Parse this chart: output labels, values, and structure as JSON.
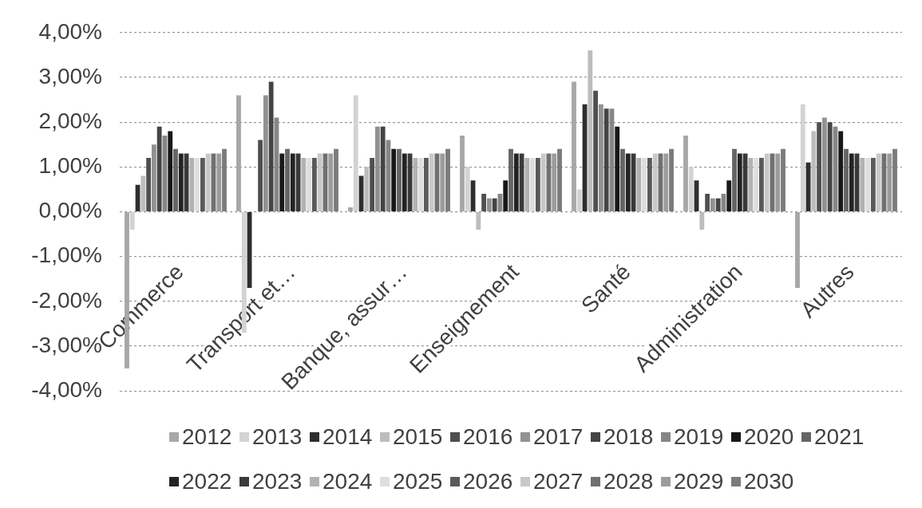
{
  "chart_data": {
    "type": "bar",
    "categories": [
      "Commerce",
      "Transport et…",
      "Banque, assur…",
      "Enseignement",
      "Santé",
      "Administration",
      "Autres"
    ],
    "series": [
      {
        "name": "2012",
        "color": "#a7a7a7",
        "values": [
          -3.5,
          2.6,
          0.1,
          1.7,
          2.9,
          1.7,
          -1.7
        ]
      },
      {
        "name": "2013",
        "color": "#d3d3d3",
        "values": [
          -0.4,
          -2.7,
          2.6,
          1.0,
          0.5,
          1.0,
          2.4
        ]
      },
      {
        "name": "2014",
        "color": "#2e2e2e",
        "values": [
          0.6,
          -1.7,
          0.8,
          0.7,
          2.4,
          0.7,
          1.1
        ]
      },
      {
        "name": "2015",
        "color": "#bdbdbd",
        "values": [
          0.8,
          0,
          1.0,
          -0.4,
          3.6,
          -0.4,
          1.8
        ]
      },
      {
        "name": "2016",
        "color": "#4f4f4f",
        "values": [
          1.2,
          1.6,
          1.2,
          0.4,
          2.7,
          0.4,
          2.0
        ]
      },
      {
        "name": "2017",
        "color": "#919191",
        "values": [
          1.5,
          2.6,
          1.9,
          0.3,
          2.4,
          0.3,
          2.1
        ]
      },
      {
        "name": "2018",
        "color": "#444444",
        "values": [
          1.9,
          2.9,
          1.9,
          0.3,
          2.3,
          0.3,
          2.0
        ]
      },
      {
        "name": "2019",
        "color": "#868686",
        "values": [
          1.7,
          2.1,
          1.6,
          0.4,
          2.3,
          0.4,
          1.9
        ]
      },
      {
        "name": "2020",
        "color": "#181818",
        "values": [
          1.8,
          1.3,
          1.4,
          0.7,
          1.9,
          0.7,
          1.8
        ]
      },
      {
        "name": "2021",
        "color": "#656565",
        "values": [
          1.4,
          1.4,
          1.4,
          1.4,
          1.4,
          1.4,
          1.4
        ]
      },
      {
        "name": "2022",
        "color": "#232323",
        "values": [
          1.3,
          1.3,
          1.3,
          1.3,
          1.3,
          1.3,
          1.3
        ]
      },
      {
        "name": "2023",
        "color": "#393939",
        "values": [
          1.3,
          1.3,
          1.3,
          1.3,
          1.3,
          1.3,
          1.3
        ]
      },
      {
        "name": "2024",
        "color": "#b2b2b2",
        "values": [
          1.2,
          1.2,
          1.2,
          1.2,
          1.2,
          1.2,
          1.2
        ]
      },
      {
        "name": "2025",
        "color": "#dedede",
        "values": [
          1.2,
          1.2,
          1.2,
          1.2,
          1.2,
          1.2,
          1.2
        ]
      },
      {
        "name": "2026",
        "color": "#5a5a5a",
        "values": [
          1.2,
          1.2,
          1.2,
          1.2,
          1.2,
          1.2,
          1.2
        ]
      },
      {
        "name": "2027",
        "color": "#c8c8c8",
        "values": [
          1.3,
          1.3,
          1.3,
          1.3,
          1.3,
          1.3,
          1.3
        ]
      },
      {
        "name": "2028",
        "color": "#707070",
        "values": [
          1.3,
          1.3,
          1.3,
          1.3,
          1.3,
          1.3,
          1.3
        ]
      },
      {
        "name": "2029",
        "color": "#9c9c9c",
        "values": [
          1.3,
          1.3,
          1.3,
          1.3,
          1.3,
          1.3,
          1.3
        ]
      },
      {
        "name": "2030",
        "color": "#7b7b7b",
        "values": [
          1.4,
          1.4,
          1.4,
          1.4,
          1.4,
          1.4,
          1.4
        ]
      }
    ],
    "ylim": [
      -4,
      4
    ],
    "yticks": [
      {
        "value": -4,
        "label": "-4,00%"
      },
      {
        "value": -3,
        "label": "-3,00%"
      },
      {
        "value": -2,
        "label": "-2,00%"
      },
      {
        "value": -1,
        "label": "-1,00%"
      },
      {
        "value": 0,
        "label": "0,00%"
      },
      {
        "value": 1,
        "label": "1,00%"
      },
      {
        "value": 2,
        "label": "2,00%"
      },
      {
        "value": 3,
        "label": "3,00%"
      },
      {
        "value": 4,
        "label": "4,00%"
      }
    ],
    "grid": "y",
    "legend": "bottom"
  }
}
